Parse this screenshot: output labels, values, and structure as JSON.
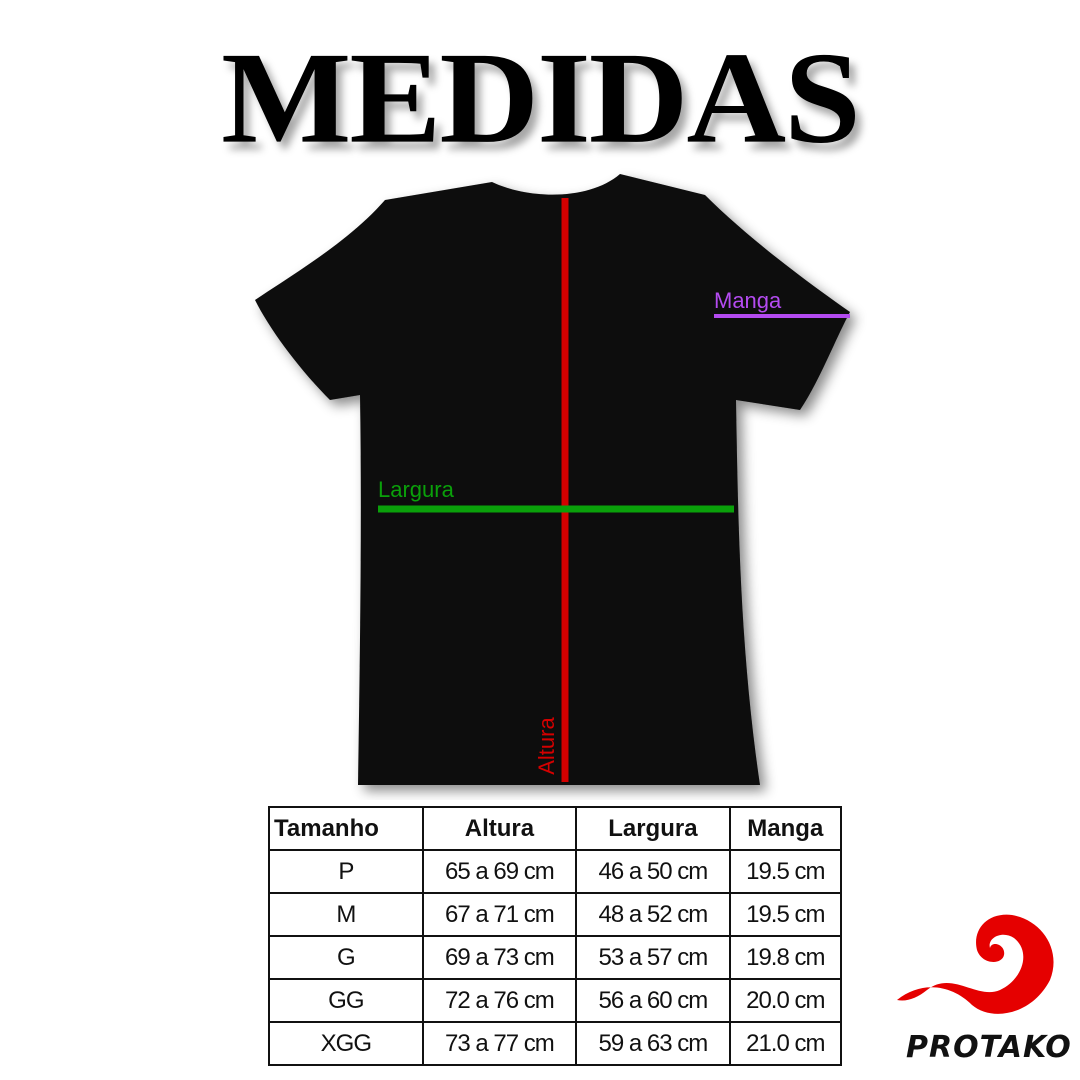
{
  "title": "MEDIDAS",
  "diagram": {
    "labels": {
      "manga": "Manga",
      "largura": "Largura",
      "altura": "Altura"
    },
    "colors": {
      "shirt": "#000000",
      "altura": "#d40000",
      "largura": "#0aa00a",
      "manga": "#b44bf0"
    }
  },
  "table": {
    "headers": [
      "Tamanho",
      "Altura",
      "Largura",
      "Manga"
    ],
    "rows": [
      [
        "P",
        "65 a 69 cm",
        "46 a 50 cm",
        "19.5 cm"
      ],
      [
        "M",
        "67 a 71 cm",
        "48 a 52 cm",
        "19.5 cm"
      ],
      [
        "G",
        "69 a 73 cm",
        "53 a 57 cm",
        "19.8 cm"
      ],
      [
        "GG",
        "72 a 76 cm",
        "56 a 60 cm",
        "20.0 cm"
      ],
      [
        "XGG",
        "73 a 77 cm",
        "59 a 63 cm",
        "21.0 cm"
      ]
    ]
  },
  "logo": {
    "text": "PROTAKO",
    "color": "#e50000"
  }
}
